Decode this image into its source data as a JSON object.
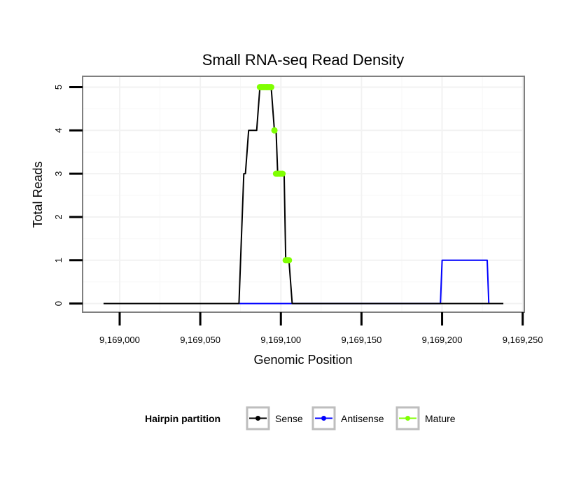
{
  "chart_data": {
    "type": "line",
    "title": "Small RNA-seq Read Density",
    "xlabel": "Genomic Position",
    "ylabel": "Total Reads",
    "xlim": [
      9168977,
      9169251
    ],
    "ylim": [
      -0.2,
      5.25
    ],
    "x_ticks": [
      9169000,
      9169050,
      9169100,
      9169150,
      9169200,
      9169250
    ],
    "x_tick_labels": [
      "9,169,000",
      "9,169,050",
      "9,169,100",
      "9,169,150",
      "9,169,200",
      "9,169,250"
    ],
    "y_ticks": [
      0,
      1,
      2,
      3,
      4,
      5
    ],
    "y_tick_labels": [
      "0",
      "1",
      "2",
      "3",
      "4",
      "5"
    ],
    "grid": true,
    "legend": {
      "title": "Hairpin partition",
      "position": "bottom",
      "entries": [
        "Sense",
        "Antisense",
        "Mature"
      ]
    },
    "series": [
      {
        "name": "Sense",
        "color": "#000000",
        "marker": "none",
        "points": [
          [
            9168990,
            0
          ],
          [
            9169074,
            0
          ],
          [
            9169077,
            3
          ],
          [
            9169078,
            3
          ],
          [
            9169080,
            4
          ],
          [
            9169085,
            4
          ],
          [
            9169087,
            5
          ],
          [
            9169094,
            5
          ],
          [
            9169096,
            4
          ],
          [
            9169097,
            4
          ],
          [
            9169098,
            3
          ],
          [
            9169102,
            3
          ],
          [
            9169103,
            1
          ],
          [
            9169105,
            1
          ],
          [
            9169107,
            0
          ],
          [
            9169238,
            0
          ]
        ]
      },
      {
        "name": "Antisense",
        "color": "#0000ff",
        "marker": "none",
        "points": [
          [
            9169074,
            0
          ],
          [
            9169199,
            0
          ],
          [
            9169200,
            1
          ],
          [
            9169228,
            1
          ],
          [
            9169229,
            0
          ]
        ]
      },
      {
        "name": "Mature",
        "color": "#7fff00",
        "marker": "point",
        "points": [
          [
            9169087,
            5
          ],
          [
            9169088,
            5
          ],
          [
            9169089,
            5
          ],
          [
            9169090,
            5
          ],
          [
            9169091,
            5
          ],
          [
            9169092,
            5
          ],
          [
            9169093,
            5
          ],
          [
            9169094,
            5
          ],
          [
            9169096,
            4
          ],
          [
            9169097,
            3
          ],
          [
            9169098,
            3
          ],
          [
            9169099,
            3
          ],
          [
            9169100,
            3
          ],
          [
            9169101,
            3
          ],
          [
            9169103,
            1
          ],
          [
            9169104,
            1
          ],
          [
            9169105,
            1
          ]
        ]
      }
    ]
  }
}
